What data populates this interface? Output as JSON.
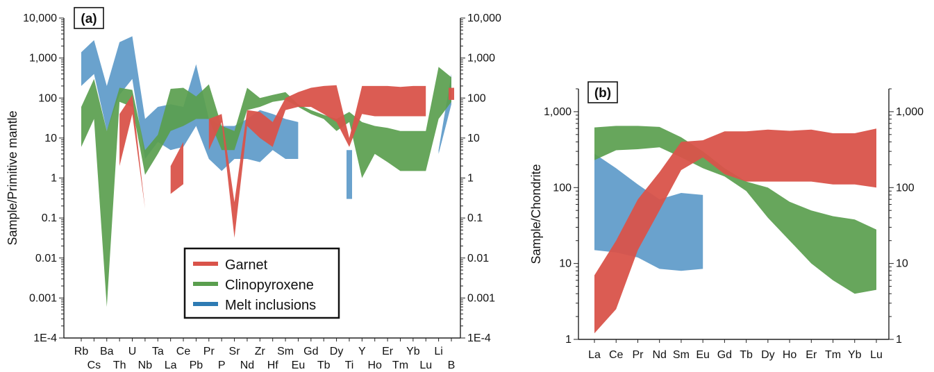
{
  "chart_data": [
    {
      "type": "area",
      "panel_label": "(a)",
      "ylabel": "Sample/Primitive mantle",
      "yscale": "log",
      "ylim": [
        0.0001,
        10000
      ],
      "y_ticks": [
        0.0001,
        0.001,
        0.01,
        0.1,
        1,
        10,
        100,
        1000,
        10000
      ],
      "y_tick_labels": [
        "1E-4",
        "0.001",
        "0.01",
        "0.1",
        "1",
        "10",
        "100",
        "1,000",
        "10,000"
      ],
      "right_axis_mirror": true,
      "categories": [
        "Rb",
        "Cs",
        "Ba",
        "Th",
        "U",
        "Nb",
        "Ta",
        "La",
        "Ce",
        "Pb",
        "Pr",
        "P",
        "Sr",
        "Nd",
        "Zr",
        "Hf",
        "Sm",
        "Eu",
        "Gd",
        "Tb",
        "Dy",
        "Ti",
        "Y",
        "Ho",
        "Er",
        "Tm",
        "Yb",
        "Lu",
        "Li",
        "B"
      ],
      "legend": {
        "entries": [
          "Garnet",
          "Clinopyroxene",
          "Melt inclusions"
        ],
        "colors": [
          "#d9534a",
          "#5a9e4e",
          "#2e7bb3"
        ],
        "position": "bottom-center"
      },
      "series": [
        {
          "name": "Melt inclusions",
          "color": "#5d9ac9",
          "segments": [
            {
              "categories": [
                "Rb",
                "Cs",
                "Ba",
                "Th",
                "U",
                "Nb",
                "Ta",
                "La",
                "Ce",
                "Pb",
                "Pr",
                "P",
                "Sr",
                "Nd",
                "Zr",
                "Hf",
                "Sm",
                "Eu"
              ],
              "upper": [
                1400,
                2800,
                200,
                2500,
                3500,
                30,
                60,
                70,
                60,
                700,
                30,
                20,
                20,
                30,
                50,
                40,
                30,
                25
              ],
              "lower": [
                200,
                400,
                15,
                120,
                300,
                3,
                8,
                5,
                6,
                20,
                3,
                1.5,
                3,
                3,
                2.5,
                5,
                3,
                3
              ]
            },
            {
              "categories": [
                "Ti"
              ],
              "upper": [
                5
              ],
              "lower": [
                0.3
              ]
            },
            {
              "categories": [
                "Li",
                "B"
              ],
              "upper": [
                5,
                400
              ],
              "lower": [
                4,
                70
              ]
            }
          ]
        },
        {
          "name": "Clinopyroxene",
          "color": "#5a9e4e",
          "segments": [
            {
              "categories": [
                "Rb",
                "Cs",
                "Ba",
                "Th",
                "U",
                "Nb",
                "Ta",
                "La",
                "Ce",
                "Pb",
                "Pr",
                "P",
                "Sr",
                "Nd",
                "Zr",
                "Hf",
                "Sm",
                "Eu",
                "Gd",
                "Tb",
                "Dy",
                "Ti",
                "Y",
                "Ho",
                "Er",
                "Tm",
                "Yb",
                "Lu",
                "Li",
                "B"
              ],
              "upper": [
                60,
                300,
                15,
                180,
                160,
                5,
                12,
                170,
                180,
                110,
                220,
                20,
                15,
                180,
                100,
                120,
                140,
                70,
                50,
                38,
                30,
                45,
                25,
                20,
                18,
                15,
                15,
                15,
                600,
                330
              ],
              "lower": [
                6,
                30,
                0.0006,
                80,
                60,
                1.2,
                4,
                15,
                20,
                30,
                30,
                5,
                5,
                50,
                60,
                80,
                90,
                60,
                40,
                30,
                15,
                25,
                1,
                4,
                2.5,
                1.5,
                1.5,
                1.5,
                30,
                80
              ]
            }
          ]
        },
        {
          "name": "Garnet",
          "color": "#d9534a",
          "segments": [
            {
              "categories": [
                "Th",
                "U",
                "Nb"
              ],
              "upper": [
                40,
                120,
                0.17
              ],
              "lower": [
                2,
                40,
                0.17
              ]
            },
            {
              "categories": [
                "La",
                "Ce"
              ],
              "upper": [
                2,
                8
              ],
              "lower": [
                0.4,
                0.7
              ]
            },
            {
              "categories": [
                "Pr",
                "P",
                "Sr",
                "Nd",
                "Zr",
                "Hf",
                "Sm",
                "Eu",
                "Gd",
                "Tb",
                "Dy",
                "Ti",
                "Y",
                "Ho",
                "Er",
                "Tm",
                "Yb",
                "Lu"
              ],
              "upper": [
                30,
                40,
                0.25,
                50,
                45,
                25,
                100,
                140,
                180,
                200,
                210,
                10,
                200,
                200,
                200,
                190,
                200,
                200
              ],
              "lower": [
                5,
                25,
                0.032,
                20,
                10,
                6,
                50,
                60,
                60,
                40,
                25,
                6,
                40,
                35,
                35,
                35,
                35,
                35
              ]
            },
            {
              "categories": [
                "B"
              ],
              "upper": [
                180
              ],
              "lower": [
                90
              ]
            }
          ]
        }
      ]
    },
    {
      "type": "area",
      "panel_label": "(b)",
      "ylabel": "Sample/Chondrite",
      "yscale": "log",
      "ylim": [
        1,
        2000
      ],
      "y_ticks": [
        1,
        10,
        100,
        1000
      ],
      "y_tick_labels": [
        "1",
        "10",
        "100",
        "1,000"
      ],
      "right_axis_mirror": true,
      "categories": [
        "La",
        "Ce",
        "Pr",
        "Nd",
        "Sm",
        "Eu",
        "Gd",
        "Tb",
        "Dy",
        "Ho",
        "Er",
        "Tm",
        "Yb",
        "Lu"
      ],
      "series": [
        {
          "name": "Melt inclusions",
          "color": "#5d9ac9",
          "segments": [
            {
              "categories": [
                "La",
                "Ce",
                "Pr",
                "Nd",
                "Sm",
                "Eu"
              ],
              "upper": [
                280,
                180,
                110,
                70,
                85,
                80
              ],
              "lower": [
                15,
                14,
                12,
                8.5,
                8,
                8.5
              ]
            }
          ]
        },
        {
          "name": "Clinopyroxene",
          "color": "#5a9e4e",
          "segments": [
            {
              "categories": [
                "La",
                "Ce",
                "Pr",
                "Nd",
                "Sm",
                "Eu",
                "Gd",
                "Tb",
                "Dy",
                "Ho",
                "Er",
                "Tm",
                "Yb",
                "Lu"
              ],
              "upper": [
                620,
                650,
                650,
                630,
                460,
                300,
                180,
                120,
                100,
                65,
                50,
                42,
                38,
                28
              ],
              "lower": [
                230,
                310,
                320,
                340,
                250,
                180,
                140,
                90,
                40,
                20,
                10,
                6,
                4,
                4.5
              ]
            }
          ]
        },
        {
          "name": "Garnet",
          "color": "#d9534a",
          "segments": [
            {
              "categories": [
                "La",
                "Ce",
                "Pr",
                "Nd",
                "Sm",
                "Eu",
                "Gd",
                "Tb",
                "Dy",
                "Ho",
                "Er",
                "Tm",
                "Yb",
                "Lu"
              ],
              "upper": [
                7,
                20,
                70,
                160,
                400,
                420,
                550,
                550,
                580,
                560,
                580,
                520,
                520,
                600
              ],
              "lower": [
                1.2,
                2.5,
                15,
                50,
                170,
                250,
                150,
                120,
                120,
                120,
                120,
                110,
                110,
                100
              ]
            }
          ]
        }
      ]
    }
  ]
}
